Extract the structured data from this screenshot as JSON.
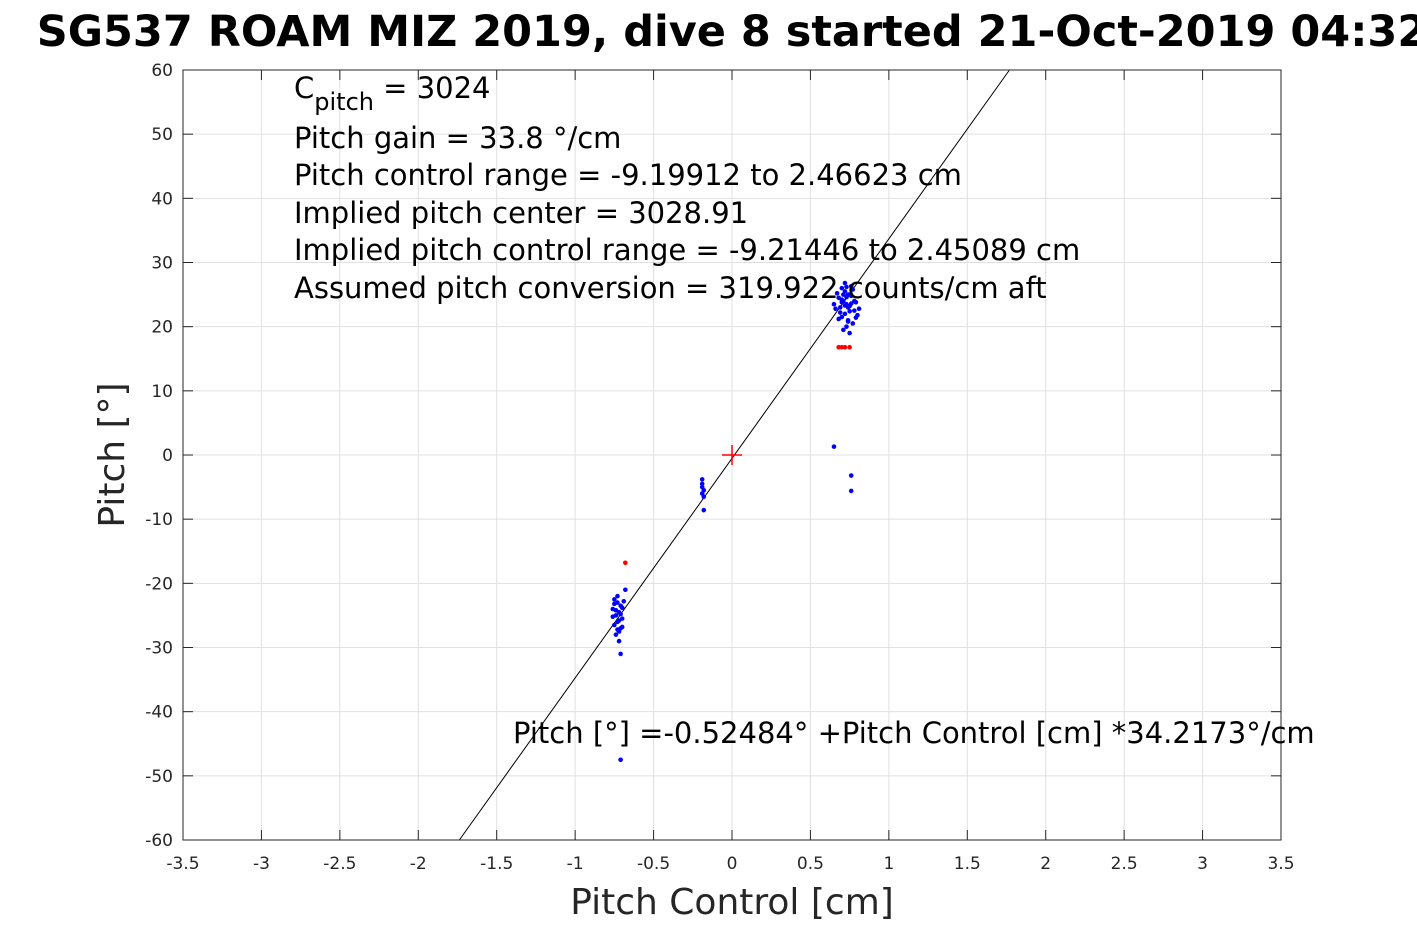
{
  "chart_data": {
    "type": "scatter",
    "title": "SG537 ROAM MIZ 2019, dive 8 started 21-Oct-2019 04:32",
    "xlabel": "Pitch Control [cm]",
    "ylabel": "Pitch [°]",
    "xlim": [
      -3.5,
      3.5
    ],
    "ylim": [
      -60,
      60
    ],
    "xticks": [
      -3.5,
      -3,
      -2.5,
      -2,
      -1.5,
      -1,
      -0.5,
      0,
      0.5,
      1,
      1.5,
      2,
      2.5,
      3,
      3.5
    ],
    "xtick_labels": [
      "-3.5",
      "-3",
      "-2.5",
      "-2",
      "-1.5",
      "-1",
      "-0.5",
      "0",
      "0.5",
      "1",
      "1.5",
      "2",
      "2.5",
      "3",
      "3.5"
    ],
    "yticks": [
      -60,
      -50,
      -40,
      -30,
      -20,
      -10,
      0,
      10,
      20,
      30,
      40,
      50,
      60
    ],
    "ytick_labels": [
      "-60",
      "-50",
      "-40",
      "-30",
      "-20",
      "-10",
      "0",
      "10",
      "20",
      "30",
      "40",
      "50",
      "60"
    ],
    "grid": true,
    "colors": {
      "valid_points": "#0000ff",
      "flagged_points": "#ff0000",
      "center_marker": "#ff0000",
      "fit_line": "#000000",
      "grid": "#e0e0e0",
      "axes": "#262626"
    },
    "fit": {
      "intercept": -0.52484,
      "slope": 34.2173
    },
    "center_marker": {
      "x": 0,
      "y": 0,
      "marker": "+"
    },
    "annotations": {
      "c_pitch_symbol": "C",
      "c_pitch_subscript": "pitch",
      "c_pitch_value": " = 3024",
      "lines": [
        "Pitch gain = 33.8 °/cm",
        "Pitch control range = -9.19912 to 2.46623 cm",
        "Implied pitch center = 3028.91",
        "Implied pitch control range = -9.21446 to 2.45089 cm",
        "Assumed pitch conversion = 319.922 counts/cm aft"
      ],
      "equation": "Pitch [°] =-0.52484° +Pitch Control [cm] *34.2173°/cm"
    },
    "series": [
      {
        "color": "#0000ff",
        "points": [
          [
            0.72,
            25.5
          ],
          [
            0.7,
            26.0
          ],
          [
            0.74,
            25.0
          ],
          [
            0.68,
            24.5
          ],
          [
            0.76,
            24.8
          ],
          [
            0.71,
            24.0
          ],
          [
            0.73,
            23.5
          ],
          [
            0.69,
            23.0
          ],
          [
            0.75,
            23.2
          ],
          [
            0.78,
            22.5
          ],
          [
            0.66,
            22.8
          ],
          [
            0.72,
            22.0
          ],
          [
            0.8,
            21.8
          ],
          [
            0.7,
            21.5
          ],
          [
            0.74,
            21.0
          ],
          [
            0.77,
            20.5
          ],
          [
            0.73,
            20.0
          ],
          [
            0.71,
            19.5
          ],
          [
            0.75,
            19.0
          ],
          [
            0.79,
            23.8
          ],
          [
            0.67,
            25.2
          ],
          [
            0.76,
            26.3
          ],
          [
            0.72,
            26.8
          ],
          [
            0.7,
            24.2
          ],
          [
            0.74,
            23.0
          ],
          [
            0.78,
            24.0
          ],
          [
            0.65,
            23.5
          ],
          [
            0.81,
            22.8
          ],
          [
            0.69,
            22.2
          ],
          [
            0.73,
            24.6
          ],
          [
            0.77,
            25.8
          ],
          [
            0.71,
            25.0
          ],
          [
            0.75,
            22.4
          ],
          [
            0.68,
            21.2
          ],
          [
            0.79,
            21.4
          ],
          [
            0.74,
            20.8
          ],
          [
            0.7,
            23.8
          ],
          [
            0.72,
            23.3
          ],
          [
            0.76,
            23.6
          ],
          [
            0.73,
            26.2
          ],
          [
            0.65,
            1.3
          ],
          [
            0.76,
            -3.2
          ],
          [
            0.76,
            -5.6
          ],
          [
            -0.19,
            -3.8
          ],
          [
            -0.19,
            -5.0
          ],
          [
            -0.18,
            -5.5
          ],
          [
            -0.19,
            -6.0
          ],
          [
            -0.18,
            -6.5
          ],
          [
            -0.19,
            -4.5
          ],
          [
            -0.18,
            -8.6
          ],
          [
            -0.75,
            -22.5
          ],
          [
            -0.73,
            -23.0
          ],
          [
            -0.71,
            -23.5
          ],
          [
            -0.76,
            -24.0
          ],
          [
            -0.72,
            -24.5
          ],
          [
            -0.74,
            -25.0
          ],
          [
            -0.7,
            -25.5
          ],
          [
            -0.73,
            -26.0
          ],
          [
            -0.75,
            -26.5
          ],
          [
            -0.71,
            -27.0
          ],
          [
            -0.72,
            -27.5
          ],
          [
            -0.74,
            -28.0
          ],
          [
            -0.7,
            -23.8
          ],
          [
            -0.69,
            -22.8
          ],
          [
            -0.68,
            -21.0
          ],
          [
            -0.73,
            -22.0
          ],
          [
            -0.72,
            -29.0
          ],
          [
            -0.71,
            -31.0
          ],
          [
            -0.76,
            -25.2
          ],
          [
            -0.74,
            -24.2
          ],
          [
            -0.7,
            -26.8
          ],
          [
            -0.72,
            -25.8
          ],
          [
            -0.75,
            -23.2
          ],
          [
            -0.71,
            -24.8
          ],
          [
            -0.73,
            -27.2
          ],
          [
            -0.71,
            -47.5
          ]
        ]
      },
      {
        "color": "#ff0000",
        "points": [
          [
            0.68,
            16.8
          ],
          [
            0.7,
            16.8
          ],
          [
            0.72,
            16.8
          ],
          [
            0.75,
            16.8
          ],
          [
            -0.68,
            -16.8
          ]
        ]
      }
    ]
  }
}
